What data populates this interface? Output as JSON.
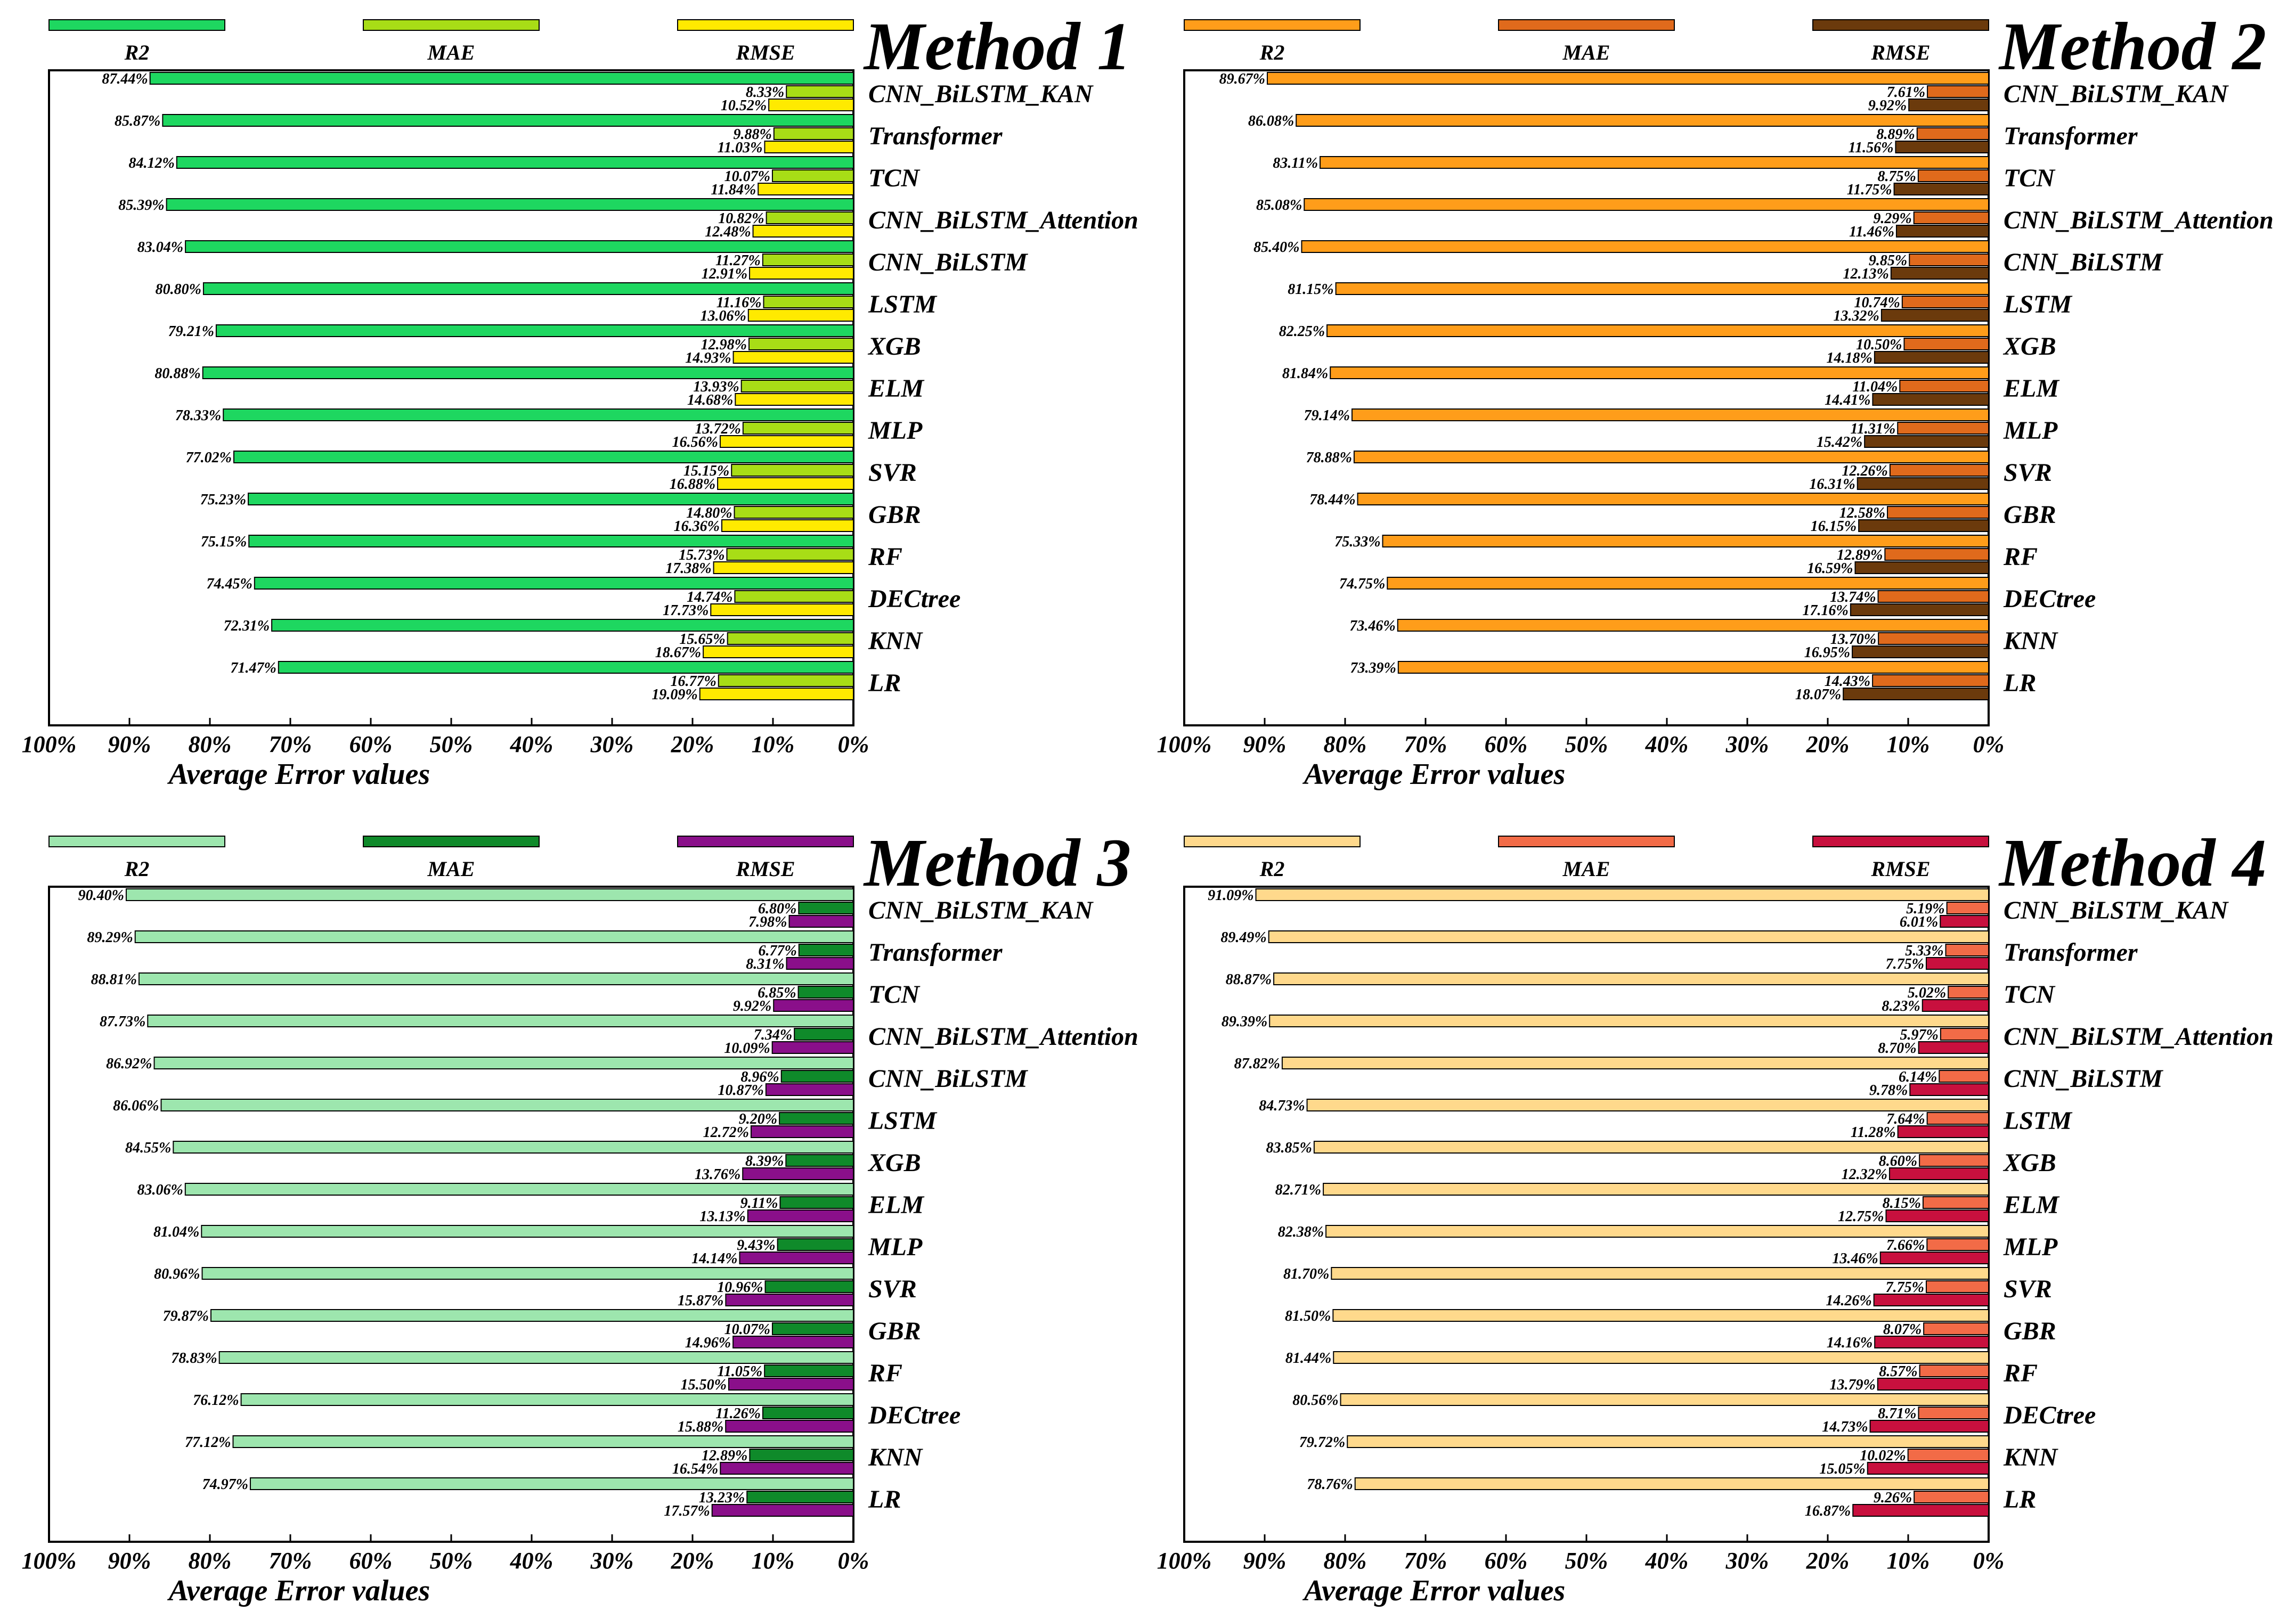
{
  "x_axis_label": "Average Error values",
  "legend_labels": [
    "R2",
    "MAE",
    "RMSE"
  ],
  "chart_data": [
    {
      "type": "bar",
      "title": "Method 1",
      "xlabel": "Average Error values",
      "xlim": [
        100,
        0
      ],
      "xticks": [
        "100%",
        "90%",
        "80%",
        "70%",
        "60%",
        "50%",
        "40%",
        "30%",
        "20%",
        "10%",
        "0%"
      ],
      "categories": [
        "CNN_BiLSTM_KAN",
        "Transformer",
        "TCN",
        "CNN_BiLSTM_Attention",
        "CNN_BiLSTM",
        "LSTM",
        "XGB",
        "ELM",
        "MLP",
        "SVR",
        "GBR",
        "RF",
        "DECtree",
        "KNN",
        "LR"
      ],
      "colors": {
        "R2": "#1ed760",
        "MAE": "#a8dd16",
        "RMSE": "#ffea00"
      },
      "series": [
        {
          "name": "R2",
          "values": [
            87.44,
            85.87,
            84.12,
            85.39,
            83.04,
            80.8,
            79.21,
            80.88,
            78.33,
            77.02,
            75.23,
            75.15,
            74.45,
            72.31,
            71.47
          ]
        },
        {
          "name": "MAE",
          "values": [
            8.33,
            9.88,
            10.07,
            10.82,
            11.27,
            11.16,
            12.98,
            13.93,
            13.72,
            15.15,
            14.8,
            15.73,
            14.74,
            15.65,
            16.77
          ]
        },
        {
          "name": "RMSE",
          "values": [
            10.52,
            11.03,
            11.84,
            12.48,
            12.91,
            13.06,
            14.93,
            14.68,
            16.56,
            16.88,
            16.36,
            17.38,
            17.73,
            18.67,
            19.09
          ]
        }
      ],
      "labels": {
        "R2": [
          "87.44%",
          "85.87%",
          "84.12%",
          "85.39%",
          "83.04%",
          "80.80%",
          "79.21%",
          "80.88%",
          "78.33%",
          "77.02%",
          "75.23%",
          "75.15%",
          "74.45%",
          "72.31%",
          "71.47%"
        ],
        "MAE": [
          "8.33%",
          "9.88%",
          "10.07%",
          "10.82%",
          "11.27%",
          "11.16%",
          "12.98%",
          "13.93%",
          "13.72%",
          "15.15%",
          "14.80%",
          "15.73%",
          "14.74%",
          "15.65%",
          "16.77%"
        ],
        "RMSE": [
          "10.52%",
          "11.03%",
          "11.84%",
          "12.48%",
          "12.91%",
          "13.06%",
          "14.93%",
          "14.68%",
          "16.56%",
          "16.88%",
          "16.36%",
          "17.38%",
          "17.73%",
          "18.67%",
          "19.09%"
        ]
      }
    },
    {
      "type": "bar",
      "title": "Method 2",
      "xlabel": "Average Error values",
      "xlim": [
        100,
        0
      ],
      "xticks": [
        "100%",
        "90%",
        "80%",
        "70%",
        "60%",
        "50%",
        "40%",
        "30%",
        "20%",
        "10%",
        "0%"
      ],
      "categories": [
        "CNN_BiLSTM_KAN",
        "Transformer",
        "TCN",
        "CNN_BiLSTM_Attention",
        "CNN_BiLSTM",
        "LSTM",
        "XGB",
        "ELM",
        "MLP",
        "SVR",
        "GBR",
        "RF",
        "DECtree",
        "KNN",
        "LR"
      ],
      "colors": {
        "R2": "#ff9d1a",
        "MAE": "#e06a1c",
        "RMSE": "#6b3a0c"
      },
      "series": [
        {
          "name": "R2",
          "values": [
            89.67,
            86.08,
            83.11,
            85.08,
            85.4,
            81.15,
            82.25,
            81.84,
            79.14,
            78.88,
            78.44,
            75.33,
            74.75,
            73.46,
            73.39
          ]
        },
        {
          "name": "MAE",
          "values": [
            7.61,
            8.89,
            8.75,
            9.29,
            9.85,
            10.74,
            10.5,
            11.04,
            11.31,
            12.26,
            12.58,
            12.89,
            13.74,
            13.7,
            14.43
          ]
        },
        {
          "name": "RMSE",
          "values": [
            9.92,
            11.56,
            11.75,
            11.46,
            12.13,
            13.32,
            14.18,
            14.41,
            15.42,
            16.31,
            16.15,
            16.59,
            17.16,
            16.95,
            18.07
          ]
        }
      ],
      "labels": {
        "R2": [
          "89.67%",
          "86.08%",
          "83.11%",
          "85.08%",
          "85.40%",
          "81.15%",
          "82.25%",
          "81.84%",
          "79.14%",
          "78.88%",
          "78.44%",
          "75.33%",
          "74.75%",
          "73.46%",
          "73.39%"
        ],
        "MAE": [
          "7.61%",
          "8.89%",
          "8.75%",
          "9.29%",
          "9.85%",
          "10.74%",
          "10.50%",
          "11.04%",
          "11.31%",
          "12.26%",
          "12.58%",
          "12.89%",
          "13.74%",
          "13.70%",
          "14.43%"
        ],
        "RMSE": [
          "9.92%",
          "11.56%",
          "11.75%",
          "11.46%",
          "12.13%",
          "13.32%",
          "14.18%",
          "14.41%",
          "15.42%",
          "16.31%",
          "16.15%",
          "16.59%",
          "17.16%",
          "16.95%",
          "18.07%"
        ]
      }
    },
    {
      "type": "bar",
      "title": "Method 3",
      "xlabel": "Average Error values",
      "xlim": [
        100,
        0
      ],
      "xticks": [
        "100%",
        "90%",
        "80%",
        "70%",
        "60%",
        "50%",
        "40%",
        "30%",
        "20%",
        "10%",
        "0%"
      ],
      "categories": [
        "CNN_BiLSTM_KAN",
        "Transformer",
        "TCN",
        "CNN_BiLSTM_Attention",
        "CNN_BiLSTM",
        "LSTM",
        "XGB",
        "ELM",
        "MLP",
        "SVR",
        "GBR",
        "RF",
        "DECtree",
        "KNN",
        "LR"
      ],
      "colors": {
        "R2": "#9de6ae",
        "MAE": "#0f8a2a",
        "RMSE": "#8a0f8a"
      },
      "series": [
        {
          "name": "R2",
          "values": [
            90.4,
            89.29,
            88.81,
            87.73,
            86.92,
            86.06,
            84.55,
            83.06,
            81.04,
            80.96,
            79.87,
            78.83,
            76.12,
            77.12,
            74.97
          ]
        },
        {
          "name": "MAE",
          "values": [
            6.8,
            6.77,
            6.85,
            7.34,
            8.96,
            9.2,
            8.39,
            9.11,
            9.43,
            10.96,
            10.07,
            11.05,
            11.26,
            12.89,
            13.23
          ]
        },
        {
          "name": "RMSE",
          "values": [
            7.98,
            8.31,
            9.92,
            10.09,
            10.87,
            12.72,
            13.76,
            13.13,
            14.14,
            15.87,
            14.96,
            15.5,
            15.88,
            16.54,
            17.57
          ]
        }
      ],
      "labels": {
        "R2": [
          "90.40%",
          "89.29%",
          "88.81%",
          "87.73%",
          "86.92%",
          "86.06%",
          "84.55%",
          "83.06%",
          "81.04%",
          "80.96%",
          "79.87%",
          "78.83%",
          "76.12%",
          "77.12%",
          "74.97%"
        ],
        "MAE": [
          "6.80%",
          "6.77%",
          "6.85%",
          "7.34%",
          "8.96%",
          "9.20%",
          "8.39%",
          "9.11%",
          "9.43%",
          "10.96%",
          "10.07%",
          "11.05%",
          "11.26%",
          "12.89%",
          "13.23%"
        ],
        "RMSE": [
          "7.98%",
          "8.31%",
          "9.92%",
          "10.09%",
          "10.87%",
          "12.72%",
          "13.76%",
          "13.13%",
          "14.14%",
          "15.87%",
          "14.96%",
          "15.50%",
          "15.88%",
          "16.54%",
          "17.57%"
        ]
      }
    },
    {
      "type": "bar",
      "title": "Method 4",
      "xlabel": "Average Error values",
      "xlim": [
        100,
        0
      ],
      "xticks": [
        "100%",
        "90%",
        "80%",
        "70%",
        "60%",
        "50%",
        "40%",
        "30%",
        "20%",
        "10%",
        "0%"
      ],
      "categories": [
        "CNN_BiLSTM_KAN",
        "Transformer",
        "TCN",
        "CNN_BiLSTM_Attention",
        "CNN_BiLSTM",
        "LSTM",
        "XGB",
        "ELM",
        "MLP",
        "SVR",
        "GBR",
        "RF",
        "DECtree",
        "KNN",
        "LR"
      ],
      "colors": {
        "R2": "#ffd98c",
        "MAE": "#f26b47",
        "RMSE": "#c8103e"
      },
      "series": [
        {
          "name": "R2",
          "values": [
            91.09,
            89.49,
            88.87,
            89.39,
            87.82,
            84.73,
            83.85,
            82.71,
            82.38,
            81.7,
            81.5,
            81.44,
            80.56,
            79.72,
            78.76
          ]
        },
        {
          "name": "MAE",
          "values": [
            5.19,
            5.33,
            5.02,
            5.97,
            6.14,
            7.64,
            8.6,
            8.15,
            7.66,
            7.75,
            8.07,
            8.57,
            8.71,
            10.02,
            9.26
          ]
        },
        {
          "name": "RMSE",
          "values": [
            6.01,
            7.75,
            8.23,
            8.7,
            9.78,
            11.28,
            12.32,
            12.75,
            13.46,
            14.26,
            14.16,
            13.79,
            14.73,
            15.05,
            16.87
          ]
        }
      ],
      "labels": {
        "R2": [
          "91.09%",
          "89.49%",
          "88.87%",
          "89.39%",
          "87.82%",
          "84.73%",
          "83.85%",
          "82.71%",
          "82.38%",
          "81.70%",
          "81.50%",
          "81.44%",
          "80.56%",
          "79.72%",
          "78.76%"
        ],
        "MAE": [
          "5.19%",
          "5.33%",
          "5.02%",
          "5.97%",
          "6.14%",
          "7.64%",
          "8.60%",
          "8.15%",
          "7.66%",
          "7.75%",
          "8.07%",
          "8.57%",
          "8.71%",
          "10.02%",
          "9.26%"
        ],
        "RMSE": [
          "6.01%",
          "7.75%",
          "8.23%",
          "8.70%",
          "9.78%",
          "11.28%",
          "12.32%",
          "12.75%",
          "13.46%",
          "14.26%",
          "14.16%",
          "13.79%",
          "14.73%",
          "15.05%",
          "16.87%"
        ]
      }
    }
  ]
}
